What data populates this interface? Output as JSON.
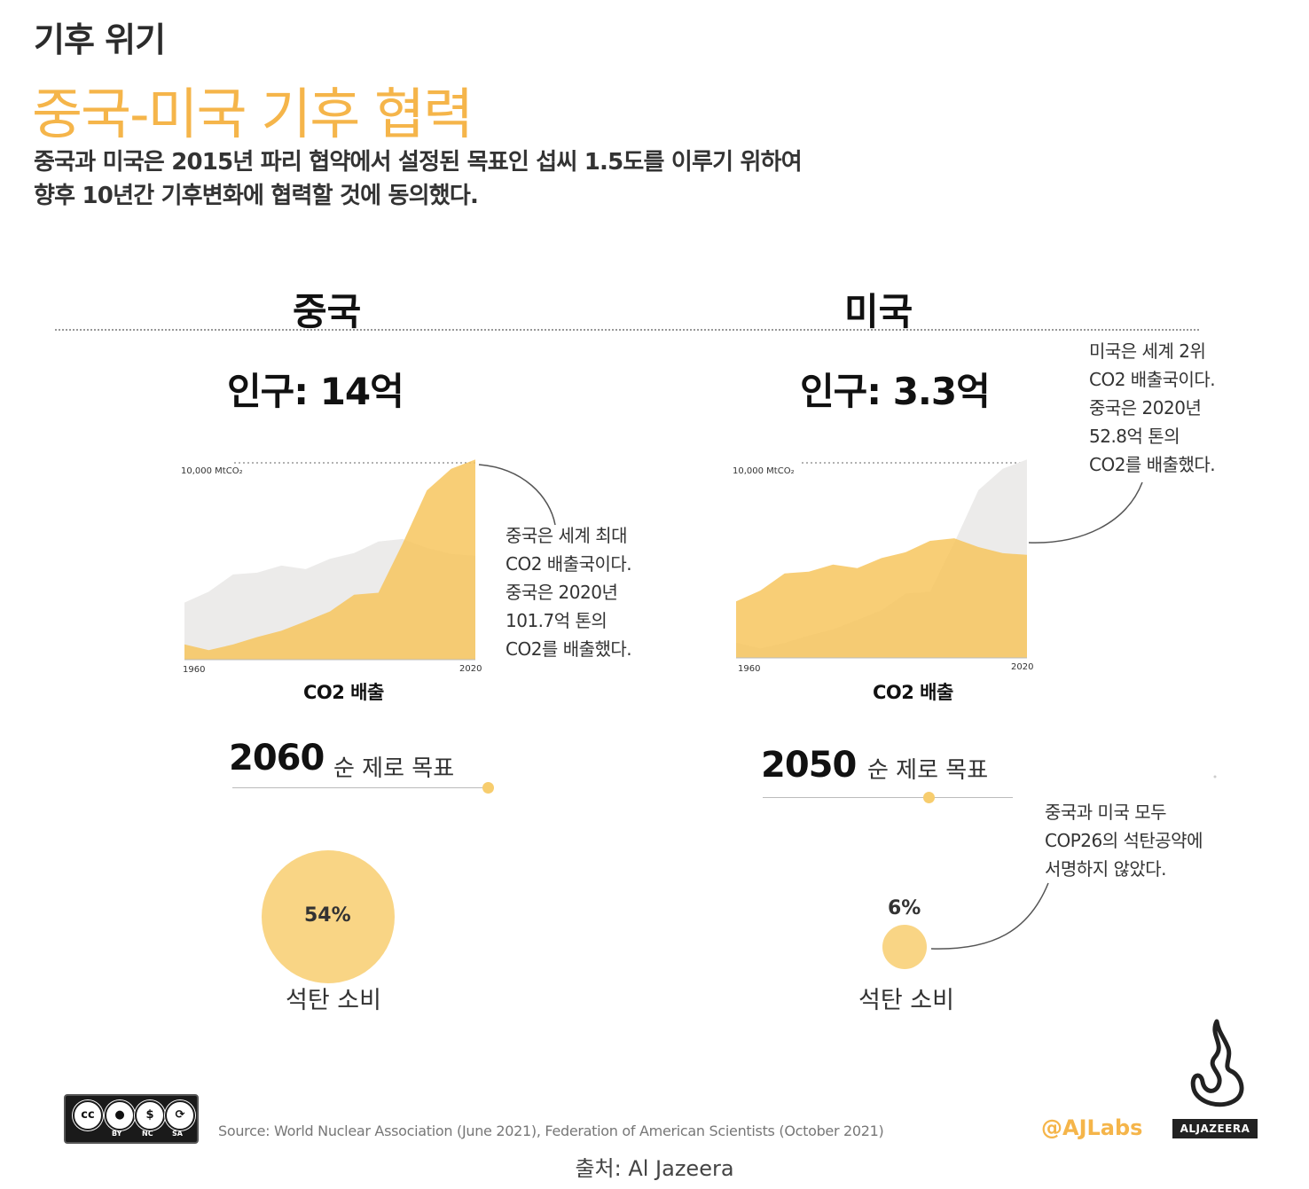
{
  "header": {
    "kicker": "기후 위기",
    "title": "중국-미국 기후 협력",
    "subtitle_line1": "중국과 미국은 2015년 파리 협약에서 설정된 목표인 섭씨 1.5도를 이루기 위하여",
    "subtitle_line2": "향후 10년간 기후변화에 협력할 것에 동의했다."
  },
  "colors": {
    "accent": "#f5b54a",
    "fill_main": "#f7c65e",
    "fill_other": "#ecebea"
  },
  "china": {
    "name": "중국",
    "population": "인구: 14억",
    "note": [
      "중국은 세계 최대",
      "CO2 배출국이다.",
      "중국은 2020년",
      "101.7억 톤의",
      "CO2를 배출했다."
    ],
    "goal_year": "2060",
    "goal_text": "순 제로 목표",
    "coal_pct": "54%",
    "coal_label": "석탄 소비"
  },
  "usa": {
    "name": "미국",
    "population": "인구: 3.3억",
    "note": [
      "미국은 세계 2위",
      "CO2 배출국이다.",
      "중국은 2020년",
      "52.8억 톤의",
      "CO2를 배출했다."
    ],
    "goal_year": "2050",
    "goal_text": "순 제로 목표",
    "coal_pct": "6%",
    "coal_label": "석탄 소비",
    "cop26_note": [
      "중국과 미국 모두",
      "COP26의 석탄공약에",
      "서명하지 않았다."
    ]
  },
  "chart_data": [
    {
      "type": "area",
      "title": "중국",
      "xlabel": "CO2 배출",
      "ylabel": "",
      "unit_label": "10,000 MtCO₂",
      "x_tick_start": "1960",
      "x_tick_end": "2020",
      "xlim": [
        1960,
        2020
      ],
      "ylim": [
        0,
        10000
      ],
      "x": [
        1960,
        1965,
        1970,
        1975,
        1980,
        1985,
        1990,
        1995,
        2000,
        2005,
        2010,
        2015,
        2020
      ],
      "series": [
        {
          "name": "중국",
          "highlight": true,
          "values": [
            780,
            480,
            770,
            1150,
            1470,
            1950,
            2450,
            3300,
            3400,
            5900,
            8600,
            9700,
            10170
          ]
        },
        {
          "name": "미국",
          "highlight": false,
          "values": [
            2900,
            3450,
            4330,
            4420,
            4780,
            4600,
            5120,
            5420,
            6000,
            6130,
            5680,
            5370,
            5280
          ]
        }
      ]
    },
    {
      "type": "area",
      "title": "미국",
      "xlabel": "CO2 배출",
      "ylabel": "",
      "unit_label": "10,000 MtCO₂",
      "x_tick_start": "1960",
      "x_tick_end": "2020",
      "xlim": [
        1960,
        2020
      ],
      "ylim": [
        0,
        10000
      ],
      "x": [
        1960,
        1965,
        1970,
        1975,
        1980,
        1985,
        1990,
        1995,
        2000,
        2005,
        2010,
        2015,
        2020
      ],
      "series": [
        {
          "name": "미국",
          "highlight": true,
          "values": [
            2900,
            3450,
            4330,
            4420,
            4780,
            4600,
            5120,
            5420,
            6000,
            6130,
            5680,
            5370,
            5280
          ]
        },
        {
          "name": "중국",
          "highlight": false,
          "values": [
            780,
            480,
            770,
            1150,
            1470,
            1950,
            2450,
            3300,
            3400,
            5900,
            8600,
            9700,
            10170
          ]
        }
      ]
    }
  ],
  "footer": {
    "source": "Source: World Nuclear Association (June 2021), Federation of American Scientists (October 2021)",
    "credit": "출처: Al Jazeera",
    "handle": "@AJLabs",
    "brand": "ALJAZEERA",
    "cc": {
      "by": "BY",
      "nc": "NC",
      "sa": "SA"
    }
  }
}
